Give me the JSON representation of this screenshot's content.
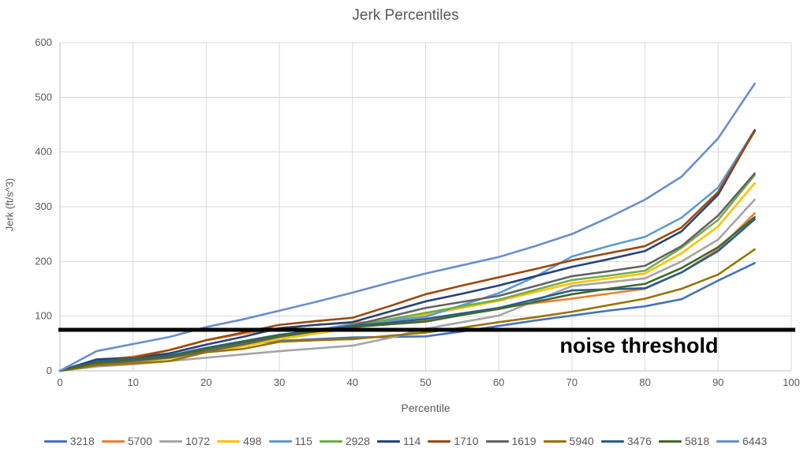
{
  "title": "Jerk Percentiles",
  "axes": {
    "xlabel": "Percentile",
    "ylabel": "Jerk (ft/s^3)",
    "x_ticks": [
      "0",
      "10",
      "20",
      "30",
      "40",
      "50",
      "60",
      "70",
      "80",
      "90",
      "100"
    ],
    "y_ticks": [
      "0",
      "100",
      "200",
      "300",
      "400",
      "500",
      "600"
    ],
    "xlim": [
      0,
      100
    ],
    "ylim": [
      0,
      600
    ],
    "grid": true
  },
  "annotation": {
    "label": "noise threshold",
    "y_value": 75,
    "line_color": "#000000"
  },
  "colors": {
    "text": "#595959",
    "gridline": "#D9D9D9",
    "axis_line": "#BFBFBF"
  },
  "chart_data": {
    "type": "line",
    "title": "Jerk Percentiles",
    "xlabel": "Percentile",
    "ylabel": "Jerk (ft/s^3)",
    "legend_position": "bottom",
    "x": [
      0,
      5,
      10,
      15,
      20,
      25,
      30,
      35,
      40,
      45,
      50,
      55,
      60,
      65,
      70,
      75,
      80,
      85,
      90,
      95
    ],
    "series": [
      {
        "name": "3218",
        "color": "#4472C4",
        "values": [
          0,
          16,
          22,
          28,
          40,
          48,
          55,
          58,
          61,
          62,
          63,
          72,
          82,
          92,
          101,
          110,
          118,
          131,
          165,
          197
        ]
      },
      {
        "name": "5700",
        "color": "#ED7D31",
        "values": [
          0,
          18,
          26,
          38,
          56,
          68,
          78,
          84,
          88,
          90,
          92,
          103,
          115,
          124,
          132,
          141,
          150,
          180,
          222,
          288
        ]
      },
      {
        "name": "1072",
        "color": "#A5A5A5",
        "values": [
          0,
          8,
          12,
          18,
          24,
          30,
          36,
          41,
          46,
          60,
          77,
          89,
          101,
          128,
          155,
          162,
          169,
          200,
          240,
          313
        ]
      },
      {
        "name": "498",
        "color": "#FFC000",
        "values": [
          0,
          12,
          17,
          23,
          34,
          45,
          58,
          68,
          78,
          90,
          103,
          115,
          128,
          144,
          160,
          169,
          178,
          215,
          264,
          343
        ]
      },
      {
        "name": "115",
        "color": "#5B9BD5",
        "values": [
          0,
          15,
          20,
          26,
          40,
          52,
          65,
          75,
          85,
          92,
          99,
          120,
          142,
          172,
          209,
          228,
          245,
          280,
          335,
          440
        ]
      },
      {
        "name": "2928",
        "color": "#70AD47",
        "values": [
          0,
          14,
          19,
          25,
          38,
          50,
          63,
          72,
          81,
          94,
          106,
          118,
          130,
          148,
          166,
          174,
          183,
          225,
          276,
          358
        ]
      },
      {
        "name": "114",
        "color": "#264478",
        "values": [
          0,
          21,
          24,
          32,
          48,
          62,
          78,
          84,
          89,
          108,
          127,
          141,
          156,
          173,
          190,
          204,
          219,
          255,
          322,
          440
        ]
      },
      {
        "name": "1710",
        "color": "#9E480E",
        "values": [
          0,
          16,
          24,
          38,
          56,
          70,
          84,
          91,
          97,
          118,
          140,
          156,
          171,
          186,
          202,
          215,
          228,
          262,
          327,
          438
        ]
      },
      {
        "name": "1619",
        "color": "#636363",
        "values": [
          0,
          13,
          18,
          24,
          36,
          48,
          62,
          72,
          83,
          99,
          115,
          126,
          137,
          155,
          173,
          182,
          192,
          228,
          284,
          361
        ]
      },
      {
        "name": "5940",
        "color": "#997300",
        "values": [
          0,
          10,
          14,
          18,
          34,
          40,
          53,
          56,
          58,
          64,
          70,
          79,
          89,
          98,
          108,
          120,
          132,
          150,
          176,
          222
        ]
      },
      {
        "name": "3476",
        "color": "#255E91",
        "values": [
          0,
          17,
          22,
          28,
          42,
          54,
          66,
          74,
          82,
          88,
          95,
          105,
          115,
          131,
          147,
          149,
          151,
          180,
          219,
          277
        ]
      },
      {
        "name": "5818",
        "color": "#43682B",
        "values": [
          0,
          15,
          20,
          26,
          40,
          52,
          64,
          72,
          80,
          85,
          90,
          102,
          113,
          126,
          140,
          150,
          159,
          188,
          226,
          281
        ]
      },
      {
        "name": "6443",
        "color": "#698ED0",
        "values": [
          0,
          36,
          49,
          62,
          80,
          94,
          110,
          126,
          143,
          161,
          178,
          193,
          208,
          228,
          250,
          280,
          313,
          355,
          425,
          525
        ]
      }
    ]
  }
}
